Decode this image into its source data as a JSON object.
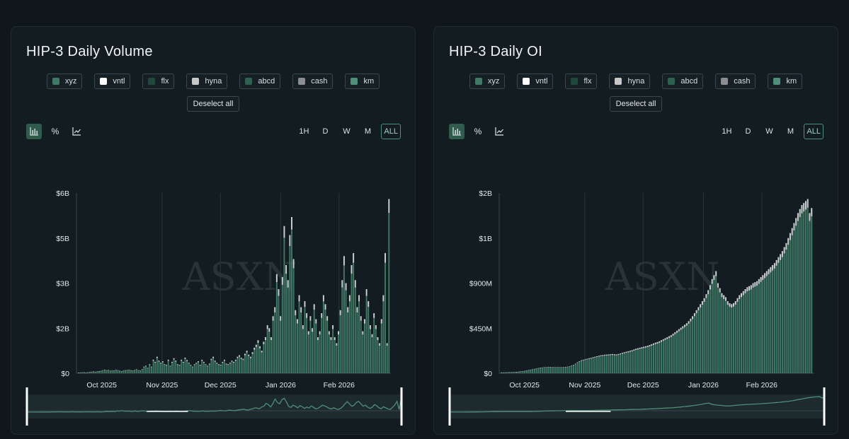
{
  "watermark": "ASXN",
  "panels": [
    {
      "title": "HIP-3 Daily Volume",
      "legend": [
        {
          "name": "xyz",
          "color": "#3f7a66"
        },
        {
          "name": "vntl",
          "color": "#ffffff"
        },
        {
          "name": "flx",
          "color": "#1f4a3b"
        },
        {
          "name": "hyna",
          "color": "#c8c8c8"
        },
        {
          "name": "abcd",
          "color": "#2e6150"
        },
        {
          "name": "cash",
          "color": "#8a8e90"
        },
        {
          "name": "km",
          "color": "#4e8f78"
        }
      ],
      "deselect_label": "Deselect all",
      "mode_buttons": [
        {
          "name": "bar-chart-icon",
          "glyph": "📊"
        },
        {
          "name": "percent-icon",
          "glyph": "%"
        },
        {
          "name": "line-chart-icon",
          "glyph": "📈"
        }
      ],
      "range_buttons": [
        "1H",
        "D",
        "W",
        "M",
        "ALL"
      ],
      "active_range": "ALL",
      "chart_data": {
        "type": "bar",
        "stacked": true,
        "title": "HIP-3 Daily Volume",
        "y_tick_labels": [
          "$0",
          "$2B",
          "$3B",
          "$5B",
          "$6B"
        ],
        "y_tick_values": [
          0,
          1500000000,
          3000000000,
          4500000000,
          6000000000
        ],
        "ylim": [
          0,
          6000000000
        ],
        "x_tick_labels": [
          "Oct 2025",
          "Nov 2025",
          "Dec 2025",
          "Jan 2026",
          "Feb 2026"
        ],
        "x_tick_days": [
          13,
          44,
          74,
          105,
          135
        ],
        "x_range_days": [
          0,
          162
        ],
        "series_colors": [
          "#3f7a66",
          "#cfd3d5"
        ],
        "values_billions": [
          0.02,
          0.02,
          0.03,
          0.03,
          0.02,
          0.03,
          0.04,
          0.05,
          0.06,
          0.05,
          0.06,
          0.07,
          0.08,
          0.1,
          0.12,
          0.1,
          0.11,
          0.08,
          0.1,
          0.09,
          0.12,
          0.1,
          0.08,
          0.07,
          0.09,
          0.1,
          0.11,
          0.12,
          0.1,
          0.09,
          0.11,
          0.13,
          0.1,
          0.09,
          0.14,
          0.22,
          0.25,
          0.18,
          0.3,
          0.22,
          0.45,
          0.38,
          0.55,
          0.42,
          0.35,
          0.4,
          0.3,
          0.28,
          0.45,
          0.25,
          0.38,
          0.5,
          0.42,
          0.3,
          0.28,
          0.45,
          0.38,
          0.52,
          0.44,
          0.35,
          0.28,
          0.22,
          0.3,
          0.35,
          0.4,
          0.28,
          0.45,
          0.38,
          0.3,
          0.25,
          0.32,
          0.48,
          0.55,
          0.42,
          0.35,
          0.3,
          0.28,
          0.38,
          0.45,
          0.32,
          0.3,
          0.35,
          0.42,
          0.38,
          0.45,
          0.55,
          0.6,
          0.52,
          0.48,
          0.65,
          0.75,
          0.62,
          0.55,
          0.7,
          0.85,
          0.95,
          1.1,
          0.9,
          0.75,
          1.05,
          1.2,
          1.6,
          1.5,
          1.2,
          1.9,
          2.2,
          3.3,
          2.8,
          1.9,
          3.2,
          4.9,
          3.6,
          3.1,
          4.6,
          5.2,
          3.8,
          2.1,
          1.8,
          2.6,
          2.2,
          1.6,
          2.4,
          2.0,
          1.4,
          1.9,
          1.5,
          2.3,
          1.8,
          1.2,
          1.4,
          2.0,
          2.6,
          2.3,
          1.9,
          1.4,
          1.2,
          1.6,
          1.2,
          1.0,
          1.4,
          2.1,
          3.1,
          3.9,
          3.0,
          2.2,
          2.6,
          3.6,
          4.0,
          3.1,
          2.2,
          2.6,
          1.9,
          1.4,
          1.8,
          2.8,
          2.4,
          1.6,
          1.3,
          2.0,
          1.6,
          1.2,
          1.0,
          1.8,
          2.6,
          4.0,
          1.0,
          5.8
        ]
      },
      "navigator_color": "#4e8f78"
    },
    {
      "title": "HIP-3 Daily OI",
      "legend": [
        {
          "name": "xyz",
          "color": "#3f7a66"
        },
        {
          "name": "vntl",
          "color": "#ffffff"
        },
        {
          "name": "flx",
          "color": "#1f4a3b"
        },
        {
          "name": "hyna",
          "color": "#c8c8c8"
        },
        {
          "name": "abcd",
          "color": "#2e6150"
        },
        {
          "name": "cash",
          "color": "#8a8e90"
        },
        {
          "name": "km",
          "color": "#4e8f78"
        }
      ],
      "deselect_label": "Deselect all",
      "mode_buttons": [
        {
          "name": "bar-chart-icon",
          "glyph": "📊"
        },
        {
          "name": "percent-icon",
          "glyph": "%"
        },
        {
          "name": "line-chart-icon",
          "glyph": "📈"
        }
      ],
      "range_buttons": [
        "1H",
        "D",
        "W",
        "M",
        "ALL"
      ],
      "active_range": "ALL",
      "chart_data": {
        "type": "bar",
        "stacked": true,
        "title": "HIP-3 Daily OI",
        "y_tick_labels": [
          "$0",
          "$450M",
          "$900M",
          "$1B",
          "$2B"
        ],
        "y_tick_values": [
          0,
          450000000,
          900000000,
          1350000000,
          1800000000
        ],
        "ylim": [
          0,
          1800000000
        ],
        "x_tick_labels": [
          "Oct 2025",
          "Nov 2025",
          "Dec 2025",
          "Jan 2026",
          "Feb 2026"
        ],
        "x_tick_days": [
          13,
          44,
          74,
          105,
          135
        ],
        "x_range_days": [
          0,
          162
        ],
        "series_colors": [
          "#3f7a66",
          "#cfd3d5"
        ],
        "values_millions": [
          8,
          8,
          9,
          9,
          10,
          10,
          11,
          12,
          14,
          16,
          18,
          20,
          24,
          28,
          32,
          36,
          40,
          44,
          48,
          52,
          56,
          58,
          60,
          62,
          64,
          63,
          62,
          62,
          61,
          60,
          60,
          61,
          62,
          63,
          65,
          70,
          78,
          85,
          95,
          110,
          120,
          130,
          135,
          140,
          145,
          150,
          155,
          160,
          165,
          170,
          175,
          180,
          182,
          185,
          186,
          188,
          190,
          192,
          190,
          188,
          192,
          198,
          205,
          210,
          215,
          220,
          225,
          230,
          238,
          245,
          250,
          255,
          260,
          265,
          270,
          275,
          282,
          290,
          298,
          306,
          312,
          320,
          330,
          340,
          350,
          360,
          370,
          380,
          395,
          410,
          425,
          440,
          455,
          470,
          485,
          500,
          520,
          545,
          570,
          600,
          630,
          660,
          690,
          720,
          750,
          790,
          830,
          880,
          940,
          980,
          1020,
          900,
          850,
          800,
          780,
          760,
          720,
          700,
          690,
          700,
          720,
          750,
          780,
          800,
          820,
          840,
          860,
          870,
          880,
          900,
          910,
          920,
          940,
          960,
          980,
          1000,
          1020,
          1040,
          1060,
          1080,
          1100,
          1130,
          1160,
          1190,
          1220,
          1260,
          1300,
          1350,
          1400,
          1450,
          1500,
          1550,
          1600,
          1640,
          1680,
          1700,
          1720,
          1740,
          1600,
          1650
        ]
      },
      "navigator_color": "#4e8f78"
    }
  ]
}
